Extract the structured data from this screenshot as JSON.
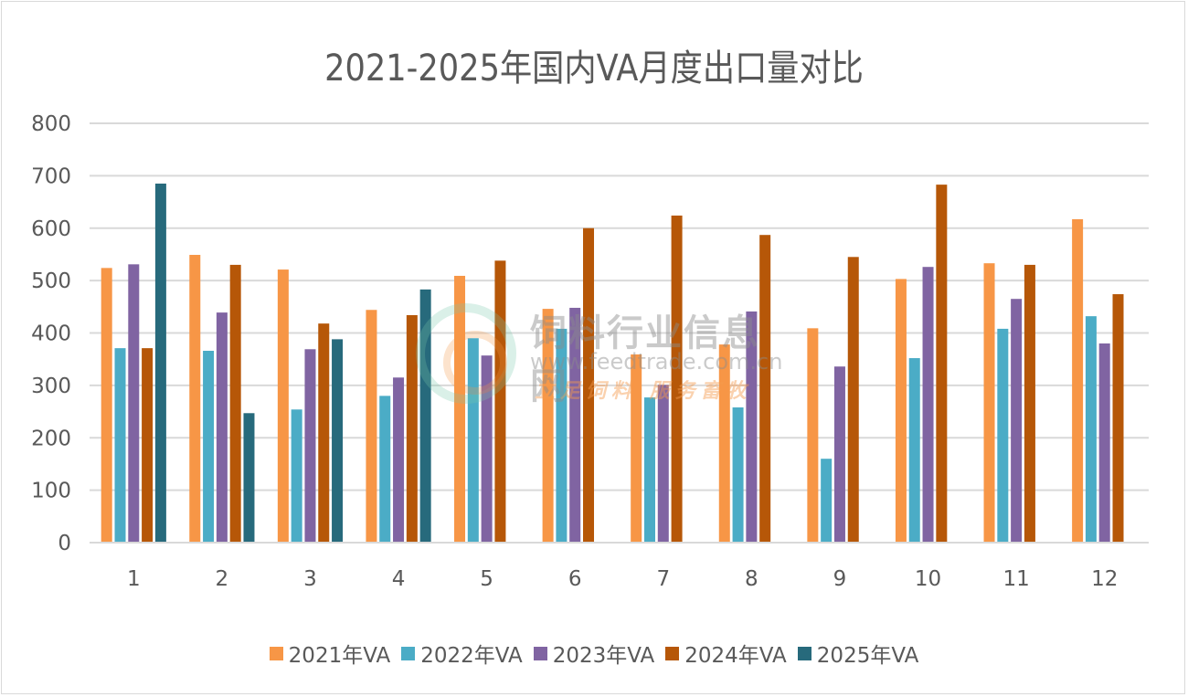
{
  "chart_data": {
    "type": "bar",
    "title": "2021-2025年国内VA月度出口量对比",
    "xlabel": "",
    "ylabel": "",
    "ylim": [
      0,
      800
    ],
    "yticks": [
      0,
      100,
      200,
      300,
      400,
      500,
      600,
      700,
      800
    ],
    "grid": true,
    "legend_position": "bottom",
    "categories": [
      "1",
      "2",
      "3",
      "4",
      "5",
      "6",
      "7",
      "8",
      "9",
      "10",
      "11",
      "12"
    ],
    "series": [
      {
        "name": "2021年VA",
        "color": "#f79646",
        "values": [
          524,
          549,
          521,
          444,
          509,
          446,
          359,
          378,
          409,
          503,
          533,
          617
        ]
      },
      {
        "name": "2022年VA",
        "color": "#4bacc6",
        "values": [
          371,
          366,
          254,
          280,
          390,
          408,
          277,
          258,
          160,
          352,
          408,
          432
        ]
      },
      {
        "name": "2023年VA",
        "color": "#8064a2",
        "values": [
          531,
          439,
          369,
          315,
          357,
          448,
          301,
          441,
          336,
          526,
          465,
          380
        ]
      },
      {
        "name": "2024年VA",
        "color": "#b65708",
        "values": [
          371,
          530,
          418,
          434,
          538,
          600,
          624,
          587,
          545,
          683,
          530,
          474
        ]
      },
      {
        "name": "2025年VA",
        "color": "#276a7c",
        "values": [
          685,
          247,
          388,
          483,
          null,
          null,
          null,
          null,
          null,
          null,
          null,
          null
        ]
      }
    ]
  },
  "watermark": {
    "name": "饲料行业信息网",
    "url": "www.feedtrade.com.cn",
    "slogan": "立足饲料  服务畜牧"
  }
}
